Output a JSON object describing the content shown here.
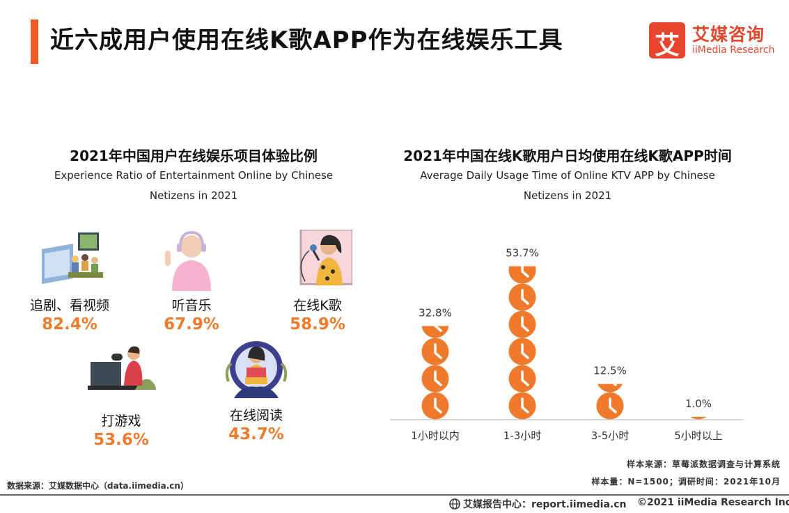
{
  "header": {
    "title": "近六成用户使用在线K歌APP作为在线娱乐工具",
    "logo_cn": "艾媒咨询",
    "logo_en": "iiMedia Research",
    "logo_mark": "艾"
  },
  "left_panel": {
    "title_cn": "2021年中国用户在线娱乐项目体验比例",
    "subtitle_line1": "Experience Ratio of Entertainment Online by Chinese",
    "subtitle_line2": "Netizens in 2021",
    "items": [
      {
        "label": "追剧、看视频",
        "value": "82.4%",
        "icon": "tv-watching-icon"
      },
      {
        "label": "听音乐",
        "value": "67.9%",
        "icon": "headphones-music-icon"
      },
      {
        "label": "在线K歌",
        "value": "58.9%",
        "icon": "karaoke-microphone-icon"
      },
      {
        "label": "打游戏",
        "value": "53.6%",
        "icon": "gaming-controller-icon"
      },
      {
        "label": "在线阅读",
        "value": "43.7%",
        "icon": "reading-book-icon"
      }
    ]
  },
  "right_panel": {
    "title_cn": "2021年中国在线K歌用户日均使用在线K歌APP时间",
    "subtitle_line1": "Average Daily Usage Time of Online KTV APP by Chinese",
    "subtitle_line2": "Netizens in 2021"
  },
  "chart_data": {
    "type": "bar",
    "categories": [
      "1小时以内",
      "1-3小时",
      "3-5小时",
      "5小时以上"
    ],
    "values": [
      32.8,
      53.7,
      12.5,
      1.0
    ],
    "labels": [
      "32.8%",
      "53.7%",
      "12.5%",
      "1.0%"
    ],
    "unit": "%",
    "ylim": [
      0,
      60
    ],
    "marker": "clock-icon",
    "marker_color": "#f07a2c",
    "title": "2021年中国在线K歌用户日均使用在线K歌APP时间"
  },
  "sources": {
    "sample_source": "样本来源：草莓派数据调查与计算系统",
    "sample_size": "样本量：N=1500；调研时间：2021年10月",
    "data_source": "数据来源：艾媒数据中心（data.iimedia.cn）"
  },
  "footer": {
    "report_center": "艾媒报告中心：report.iimedia.cn",
    "copyright": "©2021  iiMedia Research  Inc"
  },
  "colors": {
    "accent": "#f05a28",
    "value_orange": "#f07a2c",
    "brand_red": "#e8452c"
  }
}
